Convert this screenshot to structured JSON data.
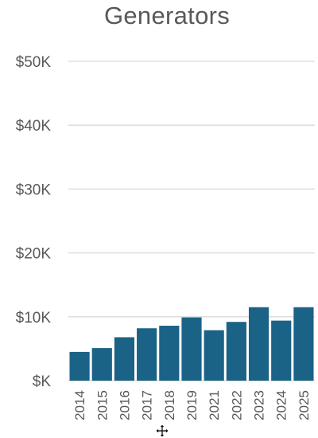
{
  "chart_data": {
    "type": "bar",
    "title": "Generators",
    "xlabel": "",
    "ylabel": "",
    "categories": [
      "2014",
      "2015",
      "2016",
      "2017",
      "2018",
      "2019",
      "2021",
      "2022",
      "2023",
      "2024",
      "2025"
    ],
    "values": [
      4500,
      5100,
      6800,
      8200,
      8600,
      9900,
      7900,
      9200,
      11500,
      9400,
      11500
    ],
    "ylim": [
      0,
      50000
    ],
    "yticks": [
      0,
      10000,
      20000,
      30000,
      40000,
      50000
    ],
    "ytick_labels": [
      "$K",
      "$10K",
      "$20K",
      "$30K",
      "$40K",
      "$50K"
    ],
    "grid": true,
    "legend": "none",
    "colors": {
      "bar": "#1b6287",
      "grid": "#d9d9d9",
      "text": "#595959"
    }
  },
  "cursor_icon": "move-cursor-icon"
}
